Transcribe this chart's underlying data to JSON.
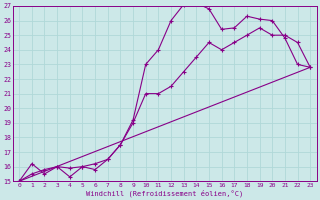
{
  "xlabel": "Windchill (Refroidissement éolien,°C)",
  "bg_color": "#cce8e8",
  "grid_color": "#aacccc",
  "line_color": "#880088",
  "xlim": [
    -0.5,
    23.5
  ],
  "ylim": [
    15,
    27
  ],
  "xticks": [
    0,
    1,
    2,
    3,
    4,
    5,
    6,
    7,
    8,
    9,
    10,
    11,
    12,
    13,
    14,
    15,
    16,
    17,
    18,
    19,
    20,
    21,
    22,
    23
  ],
  "yticks": [
    15,
    16,
    17,
    18,
    19,
    20,
    21,
    22,
    23,
    24,
    25,
    26,
    27
  ],
  "line1_x": [
    0,
    1,
    2,
    3,
    4,
    5,
    6,
    7,
    8,
    9,
    10,
    11,
    12,
    13,
    14,
    15,
    16,
    17,
    18,
    19,
    20,
    21,
    22,
    23
  ],
  "line1_y": [
    15,
    16.2,
    15.5,
    16.0,
    15.9,
    16.0,
    16.2,
    16.5,
    17.5,
    19.2,
    23.0,
    24.0,
    26.0,
    27.1,
    27.2,
    26.8,
    25.4,
    25.5,
    26.3,
    26.1,
    26.0,
    24.8,
    23.0,
    22.8
  ],
  "line2_x": [
    0,
    1,
    2,
    3,
    4,
    5,
    6,
    7,
    8,
    9,
    10,
    11,
    12,
    13,
    14,
    15,
    16,
    17,
    18,
    19,
    20,
    21,
    22,
    23
  ],
  "line2_y": [
    15,
    15.5,
    15.8,
    16.0,
    15.3,
    16.0,
    15.8,
    16.5,
    17.5,
    19.0,
    21.0,
    21.0,
    21.5,
    22.5,
    23.5,
    24.5,
    24.0,
    24.5,
    25.0,
    25.5,
    25.0,
    25.0,
    24.5,
    22.8
  ],
  "line3_x": [
    0,
    23
  ],
  "line3_y": [
    15,
    22.8
  ]
}
